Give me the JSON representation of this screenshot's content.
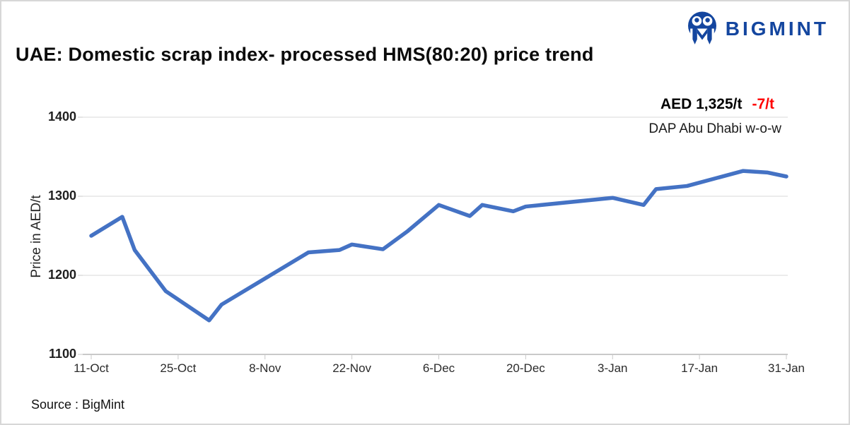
{
  "header": {
    "title": "UAE: Domestic scrap index- processed HMS(80:20) price trend",
    "brand": {
      "name": "BIGMINT",
      "color": "#14469F"
    }
  },
  "annotation": {
    "price": "AED 1,325/t",
    "change": "-7/t",
    "change_color": "#FF0000",
    "subtitle": "DAP Abu Dhabi w-o-w"
  },
  "footer": {
    "source": "Source : BigMint"
  },
  "chart_data": {
    "type": "line",
    "title": "UAE: Domestic scrap index- processed HMS(80:20) price trend",
    "xlabel": "",
    "ylabel": "Price in AED/t",
    "ylim": [
      1100,
      1400
    ],
    "y_ticks": [
      1100,
      1200,
      1300,
      1400
    ],
    "x_tick_labels": [
      "11-Oct",
      "25-Oct",
      "8-Nov",
      "22-Nov",
      "6-Dec",
      "20-Dec",
      "3-Jan",
      "17-Jan",
      "31-Jan"
    ],
    "x_tick_days": [
      0,
      14,
      28,
      42,
      56,
      70,
      84,
      98,
      112
    ],
    "grid": "horizontal",
    "legend": "none",
    "line_color": "#4472C4",
    "grid_color": "#D9D9D9",
    "axis_color": "#C9C9C9",
    "series": [
      {
        "name": "Domestic scrap index - processed HMS(80:20), AED/t",
        "points": [
          {
            "day": 0,
            "date": "11-Oct",
            "value": 1250
          },
          {
            "day": 5,
            "date": "16-Oct",
            "value": 1274
          },
          {
            "day": 7,
            "date": "18-Oct",
            "value": 1232
          },
          {
            "day": 12,
            "date": "23-Oct",
            "value": 1180
          },
          {
            "day": 19,
            "date": "30-Oct",
            "value": 1143
          },
          {
            "day": 21,
            "date": "1-Nov",
            "value": 1163
          },
          {
            "day": 35,
            "date": "15-Nov",
            "value": 1229
          },
          {
            "day": 40,
            "date": "20-Nov",
            "value": 1232
          },
          {
            "day": 42,
            "date": "22-Nov",
            "value": 1239
          },
          {
            "day": 47,
            "date": "27-Nov",
            "value": 1233
          },
          {
            "day": 51,
            "date": "1-Dec",
            "value": 1256
          },
          {
            "day": 56,
            "date": "6-Dec",
            "value": 1289
          },
          {
            "day": 61,
            "date": "11-Dec",
            "value": 1275
          },
          {
            "day": 63,
            "date": "13-Dec",
            "value": 1289
          },
          {
            "day": 68,
            "date": "17-Dec",
            "value": 1281
          },
          {
            "day": 70,
            "date": "20-Dec",
            "value": 1287
          },
          {
            "day": 84,
            "date": "3-Jan",
            "value": 1298
          },
          {
            "day": 89,
            "date": "8-Jan",
            "value": 1289
          },
          {
            "day": 91,
            "date": "10-Jan",
            "value": 1309
          },
          {
            "day": 96,
            "date": "15-Jan",
            "value": 1313
          },
          {
            "day": 105,
            "date": "24-Jan",
            "value": 1332
          },
          {
            "day": 109,
            "date": "28-Jan",
            "value": 1330
          },
          {
            "day": 112,
            "date": "31-Jan",
            "value": 1325
          }
        ]
      }
    ]
  }
}
